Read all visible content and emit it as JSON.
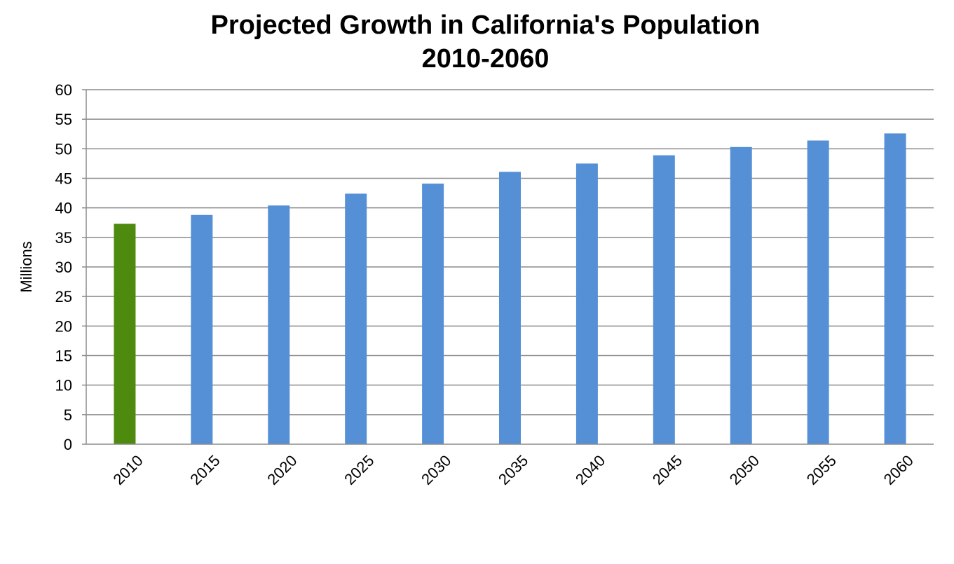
{
  "chart_data": {
    "type": "bar",
    "title": "Projected Growth in California's Population",
    "subtitle": "2010-2060",
    "xlabel": "",
    "ylabel": "Millions",
    "categories": [
      "2010",
      "2015",
      "2020",
      "2025",
      "2030",
      "2035",
      "2040",
      "2045",
      "2050",
      "2055",
      "2060"
    ],
    "values": [
      37.3,
      38.8,
      40.4,
      42.4,
      44.1,
      46.1,
      47.5,
      48.9,
      50.3,
      51.4,
      52.6
    ],
    "ylim": [
      0,
      60
    ],
    "yticks": [
      0,
      5,
      10,
      15,
      20,
      25,
      30,
      35,
      40,
      45,
      50,
      55,
      60
    ],
    "grid": true,
    "legend": "none",
    "colors": {
      "highlight": "#4E8A0E",
      "bar": "#5590D6",
      "grid": "#8C8C8C"
    }
  }
}
